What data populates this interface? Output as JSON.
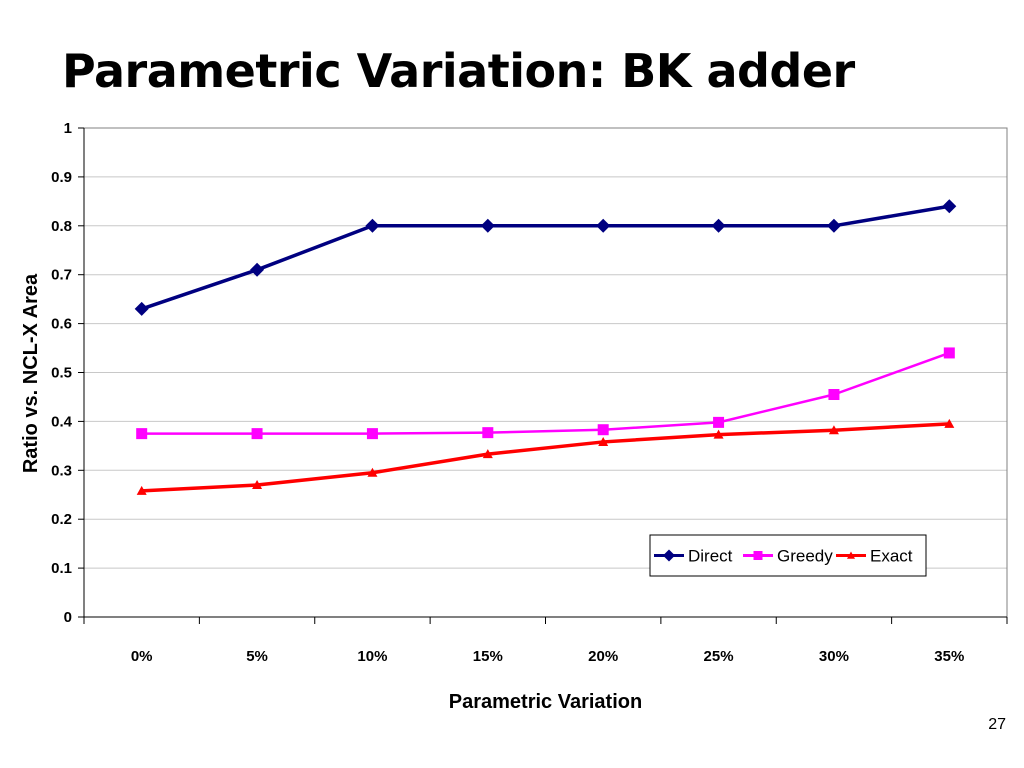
{
  "slide": {
    "title": "Parametric Variation: BK adder",
    "page_number": "27"
  },
  "chart_data": {
    "type": "line",
    "title": "",
    "xlabel": "Parametric Variation",
    "ylabel": "Ratio vs. NCL-X Area",
    "categories": [
      "0%",
      "5%",
      "10%",
      "15%",
      "20%",
      "25%",
      "30%",
      "35%"
    ],
    "ylim": [
      0,
      1
    ],
    "yticks": [
      0,
      0.1,
      0.2,
      0.3,
      0.4,
      0.5,
      0.6,
      0.7,
      0.8,
      0.9,
      1
    ],
    "ytick_labels": [
      "0",
      "0.1",
      "0.2",
      "0.3",
      "0.4",
      "0.5",
      "0.6",
      "0.7",
      "0.8",
      "0.9",
      "1"
    ],
    "grid": true,
    "legend_position": "bottom-right",
    "series": [
      {
        "name": "Direct",
        "color": "#000080",
        "marker": "diamond",
        "values": [
          0.63,
          0.71,
          0.8,
          0.8,
          0.8,
          0.8,
          0.8,
          0.84
        ]
      },
      {
        "name": "Greedy",
        "color": "#FF00FF",
        "marker": "square",
        "values": [
          0.375,
          0.375,
          0.375,
          0.377,
          0.383,
          0.398,
          0.455,
          0.54
        ]
      },
      {
        "name": "Exact",
        "color": "#FF0000",
        "marker": "triangle",
        "values": [
          0.258,
          0.27,
          0.295,
          0.333,
          0.358,
          0.373,
          0.382,
          0.395
        ]
      }
    ]
  }
}
